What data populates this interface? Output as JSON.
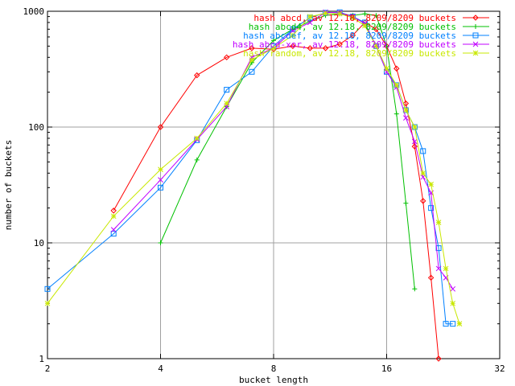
{
  "chart_data": {
    "type": "line",
    "xlabel": "bucket length",
    "ylabel": "number of buckets",
    "xscale": "log2",
    "yscale": "log10",
    "xlim": [
      2,
      32
    ],
    "ylim": [
      1,
      1000
    ],
    "x_ticks": [
      2,
      4,
      8,
      16,
      32
    ],
    "y_ticks": [
      1,
      10,
      100,
      1000
    ],
    "grid": true,
    "legend_position": "top-right",
    "series": [
      {
        "name": "hash abcd, av 12.18, 8209/8209 buckets",
        "color": "#ff0000",
        "marker": "diamond",
        "points": [
          [
            3,
            19
          ],
          [
            4,
            100
          ],
          [
            5,
            280
          ],
          [
            6,
            400
          ],
          [
            7,
            480
          ],
          [
            8,
            470
          ],
          [
            9,
            500
          ],
          [
            10,
            480
          ],
          [
            11,
            480
          ],
          [
            12,
            520
          ],
          [
            13,
            620
          ],
          [
            14,
            800
          ],
          [
            15,
            700
          ],
          [
            16,
            500
          ],
          [
            17,
            320
          ],
          [
            18,
            160
          ],
          [
            19,
            68
          ],
          [
            20,
            23
          ],
          [
            21,
            5
          ],
          [
            22,
            1
          ]
        ]
      },
      {
        "name": "hash abcd4, av 12.18, 8209/8209 buckets",
        "color": "#00c000",
        "marker": "plus",
        "points": [
          [
            4,
            10
          ],
          [
            5,
            52
          ],
          [
            6,
            150
          ],
          [
            7,
            360
          ],
          [
            8,
            560
          ],
          [
            9,
            700
          ],
          [
            10,
            820
          ],
          [
            11,
            920
          ],
          [
            12,
            950
          ],
          [
            13,
            920
          ],
          [
            14,
            950
          ],
          [
            15,
            920
          ],
          [
            16,
            500
          ],
          [
            17,
            130
          ],
          [
            18,
            22
          ],
          [
            19,
            4
          ]
        ]
      },
      {
        "name": "hash abcdef, av 12.18, 8209/8209 buckets",
        "color": "#0080ff",
        "marker": "square",
        "points": [
          [
            2,
            4
          ],
          [
            3,
            12
          ],
          [
            4,
            30
          ],
          [
            5,
            77
          ],
          [
            6,
            210
          ],
          [
            7,
            300
          ],
          [
            8,
            500
          ],
          [
            9,
            700
          ],
          [
            10,
            880
          ],
          [
            11,
            970
          ],
          [
            12,
            980
          ],
          [
            13,
            900
          ],
          [
            14,
            800
          ],
          [
            15,
            500
          ],
          [
            16,
            300
          ],
          [
            17,
            230
          ],
          [
            18,
            140
          ],
          [
            19,
            100
          ],
          [
            20,
            62
          ],
          [
            21,
            20
          ],
          [
            22,
            9
          ],
          [
            23,
            2
          ],
          [
            24,
            2
          ]
        ]
      },
      {
        "name": "hash abcd-xor, av 12.18, 8209/8209 buckets",
        "color": "#c000ff",
        "marker": "cross",
        "points": [
          [
            3,
            13
          ],
          [
            4,
            35
          ],
          [
            5,
            78
          ],
          [
            6,
            150
          ],
          [
            7,
            400
          ],
          [
            8,
            480
          ],
          [
            9,
            680
          ],
          [
            10,
            800
          ],
          [
            11,
            980
          ],
          [
            12,
            970
          ],
          [
            13,
            900
          ],
          [
            14,
            780
          ],
          [
            15,
            500
          ],
          [
            16,
            300
          ],
          [
            17,
            220
          ],
          [
            18,
            120
          ],
          [
            19,
            75
          ],
          [
            20,
            37
          ],
          [
            21,
            27
          ],
          [
            22,
            6
          ],
          [
            23,
            5
          ],
          [
            24,
            4
          ]
        ]
      },
      {
        "name": "hash random, av 12.18, 8209/8209 buckets",
        "color": "#c8e800",
        "marker": "star",
        "points": [
          [
            2,
            3
          ],
          [
            3,
            17
          ],
          [
            4,
            43
          ],
          [
            5,
            80
          ],
          [
            6,
            160
          ],
          [
            7,
            380
          ],
          [
            8,
            480
          ],
          [
            9,
            620
          ],
          [
            10,
            900
          ],
          [
            11,
            960
          ],
          [
            12,
            950
          ],
          [
            13,
            880
          ],
          [
            14,
            750
          ],
          [
            15,
            500
          ],
          [
            16,
            320
          ],
          [
            17,
            230
          ],
          [
            18,
            140
          ],
          [
            19,
            100
          ],
          [
            20,
            40
          ],
          [
            21,
            32
          ],
          [
            22,
            15
          ],
          [
            23,
            6
          ],
          [
            24,
            3
          ],
          [
            25,
            2
          ]
        ]
      }
    ]
  }
}
